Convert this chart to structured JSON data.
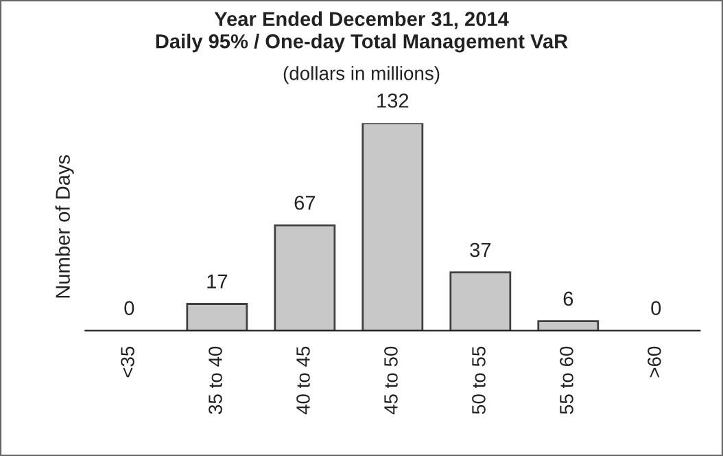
{
  "chart_data": {
    "type": "bar",
    "title": "Year Ended December 31, 2014\nDaily 95% / One-day Total Management VaR",
    "subtitle": "(dollars in millions)",
    "ylabel": "Number of Days",
    "categories": [
      "<35",
      "35 to 40",
      "40 to 45",
      "45 to 50",
      "50 to 55",
      "55 to 60",
      ">60"
    ],
    "values": [
      0,
      17,
      67,
      132,
      37,
      6,
      0
    ],
    "color": "#c8c8c8",
    "data_labels": true,
    "grid": false,
    "legend": false,
    "tick_labels": "x"
  }
}
